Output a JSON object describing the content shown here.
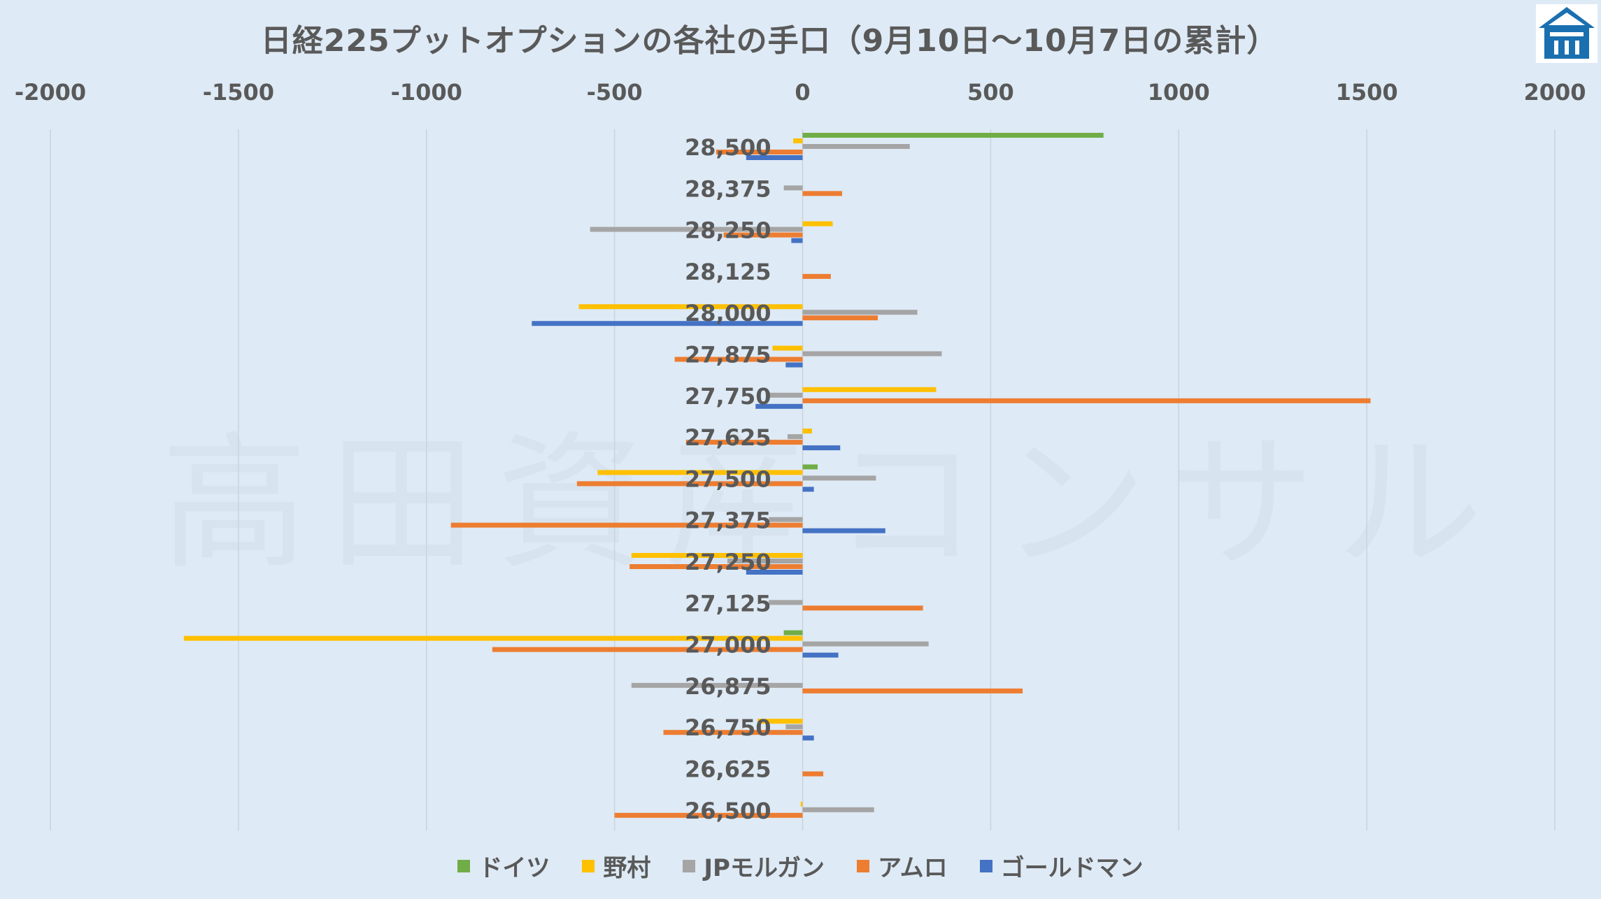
{
  "chart_data": {
    "type": "bar",
    "orientation": "horizontal",
    "title": "日経225プットオプションの各社の手口（9月10日～10月7日の累計）",
    "categories": [
      "28,500",
      "28,375",
      "28,250",
      "28,125",
      "28,000",
      "27,875",
      "27,750",
      "27,625",
      "27,500",
      "27,375",
      "27,250",
      "27,125",
      "27,000",
      "26,875",
      "26,750",
      "26,625",
      "26,500"
    ],
    "xlim": [
      -2000,
      2000
    ],
    "xticks": [
      "-2000",
      "-1500",
      "-1000",
      "-500",
      "0",
      "500",
      "1000",
      "1500",
      "2000"
    ],
    "xtick_values": [
      -2000,
      -1500,
      -1000,
      -500,
      0,
      500,
      1000,
      1500,
      2000
    ],
    "axis_position": "top",
    "grid": "vertical",
    "legend_position": "bottom",
    "series": [
      {
        "name": "ドイツ",
        "color": "#70ad47",
        "values": [
          800,
          0,
          0,
          0,
          0,
          0,
          0,
          0,
          40,
          0,
          0,
          0,
          -50,
          0,
          0,
          0,
          0
        ]
      },
      {
        "name": "野村",
        "color": "#ffc000",
        "values": [
          -25,
          0,
          80,
          0,
          -595,
          -80,
          355,
          25,
          -545,
          0,
          -455,
          0,
          -1645,
          0,
          -120,
          0,
          -5
        ]
      },
      {
        "name": "JPモルガン",
        "color": "#a5a5a5",
        "values": [
          285,
          -50,
          -565,
          0,
          305,
          370,
          -90,
          -40,
          195,
          -90,
          -200,
          -90,
          335,
          -455,
          -45,
          0,
          190
        ]
      },
      {
        "name": "アムロ",
        "color": "#ed7d31",
        "values": [
          -230,
          105,
          -210,
          75,
          200,
          -340,
          1510,
          -310,
          -600,
          -935,
          -460,
          320,
          -825,
          585,
          -370,
          55,
          -500
        ]
      },
      {
        "name": "ゴールドマン",
        "color": "#4472c4",
        "values": [
          -150,
          0,
          -30,
          0,
          -720,
          -45,
          -125,
          100,
          30,
          220,
          -150,
          0,
          95,
          0,
          30,
          0,
          0
        ]
      }
    ]
  },
  "watermark": "高田資産コンサル",
  "logo": {
    "icon": "house-logo-icon",
    "color": "#1a6fb0"
  }
}
